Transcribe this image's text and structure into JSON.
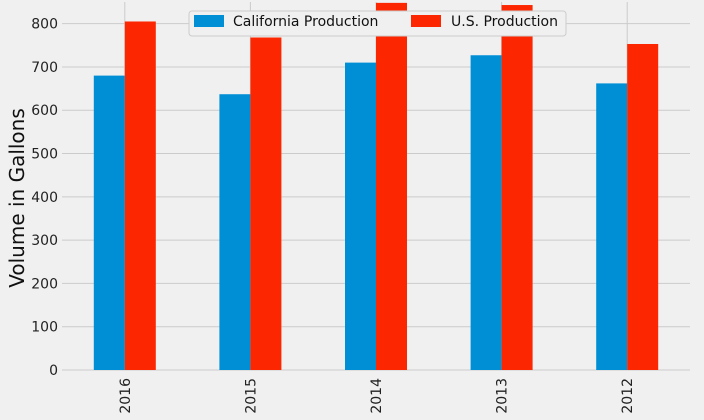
{
  "chart_data": {
    "type": "bar",
    "categories": [
      "2016",
      "2015",
      "2014",
      "2013",
      "2012"
    ],
    "series": [
      {
        "name": "California Production",
        "values": [
          680,
          637,
          710,
          727,
          662
        ],
        "color": "#008fd5"
      },
      {
        "name": "U.S. Production",
        "values": [
          805,
          768,
          848,
          843,
          753
        ],
        "color": "#fc2700"
      }
    ],
    "xlabel": "",
    "ylabel": "Volume in Gallons",
    "ylim": [
      0,
      850
    ],
    "yticks": [
      0,
      100,
      200,
      300,
      400,
      500,
      600,
      700,
      800
    ],
    "grid": true,
    "legend": "top-center",
    "background": "#f0f0f0",
    "grid_color": "#cbcbcb"
  }
}
